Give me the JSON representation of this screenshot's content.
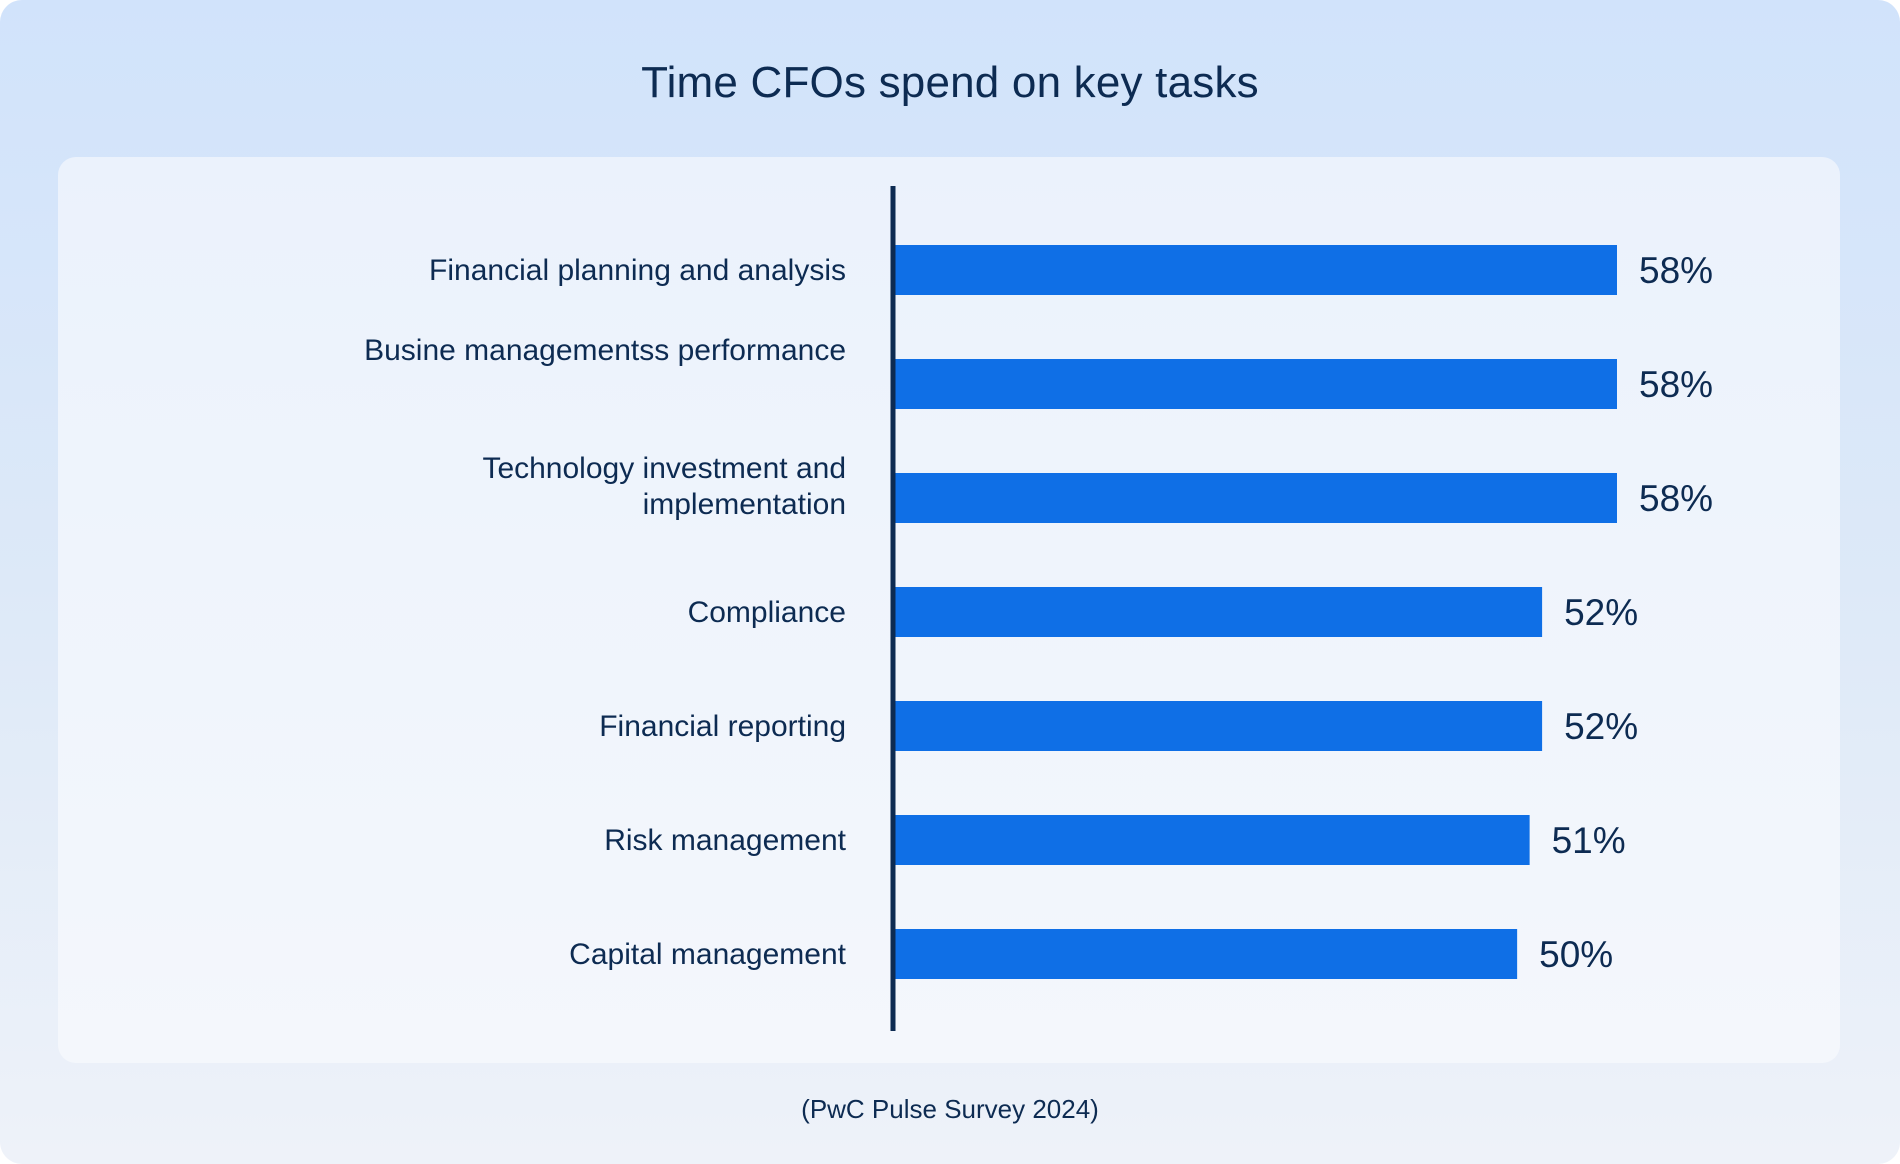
{
  "title": "Time CFOs spend on key tasks",
  "source": "(PwC Pulse Survey 2024)",
  "colors": {
    "bar": "#0f6fe6",
    "axis": "#0d2b52",
    "text": "#0d2b52"
  },
  "chart_data": {
    "type": "bar",
    "orientation": "horizontal",
    "title": "Time CFOs spend on key tasks",
    "categories": [
      [
        "Financial planning and analysis"
      ],
      [
        "Busine managementss performance"
      ],
      [
        "Technology investment and",
        "implementation"
      ],
      [
        "Compliance"
      ],
      [
        "Financial reporting"
      ],
      [
        "Risk management"
      ],
      [
        "Capital management"
      ]
    ],
    "values": [
      58,
      58,
      58,
      52,
      52,
      51,
      50
    ],
    "value_labels": [
      "58%",
      "58%",
      "58%",
      "52%",
      "52%",
      "51%",
      "50%"
    ],
    "unit": "%",
    "xlim": [
      0,
      65
    ],
    "grid": false,
    "legend": "none"
  }
}
